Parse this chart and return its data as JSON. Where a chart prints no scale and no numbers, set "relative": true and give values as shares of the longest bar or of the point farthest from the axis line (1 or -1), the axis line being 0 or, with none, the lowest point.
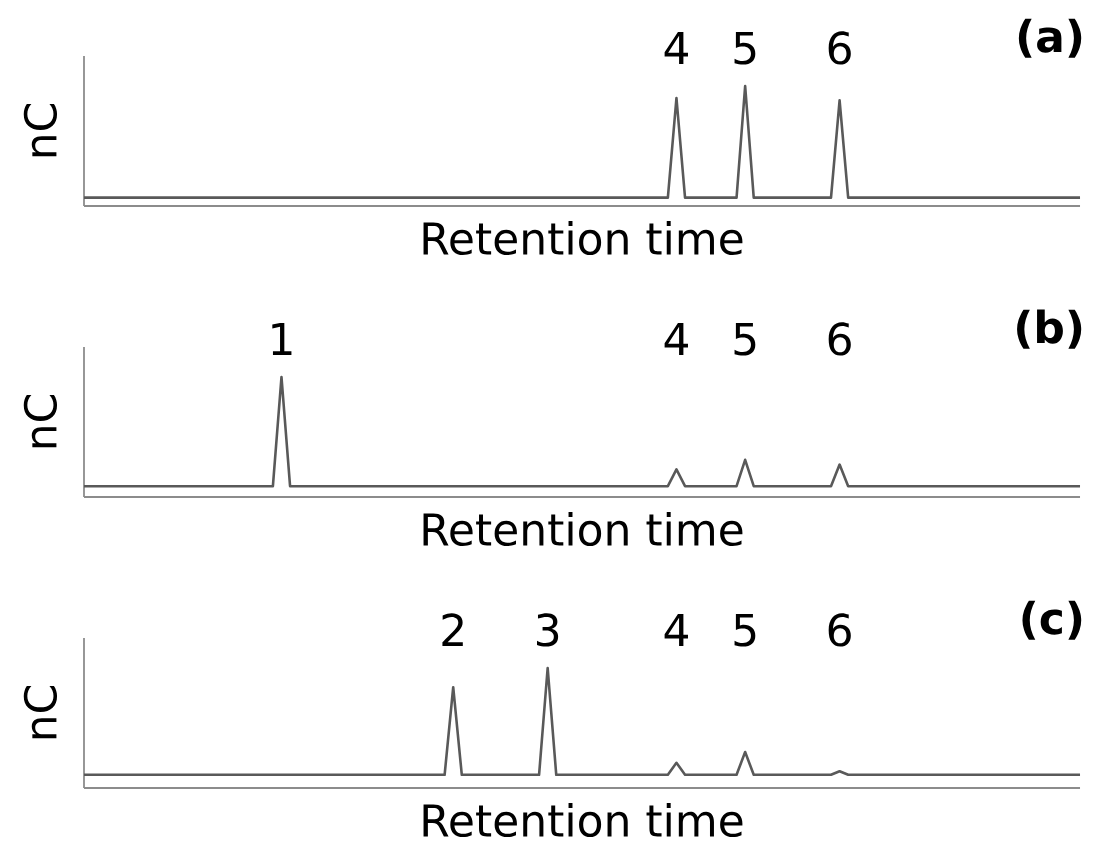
{
  "chart_data": [
    {
      "type": "line",
      "title": "(a)",
      "ylabel": "nC",
      "xlabel": "Retention time",
      "relative": true,
      "line_style": "solid",
      "annotations": [
        "4",
        "5",
        "6"
      ],
      "categories": [
        null,
        null,
        null,
        null,
        null,
        null,
        null,
        null,
        null,
        null,
        null,
        null,
        null,
        null,
        null,
        null,
        null,
        null,
        null,
        null,
        null,
        null,
        null,
        null,
        null,
        null,
        null,
        null,
        null,
        null,
        null,
        null,
        null,
        null,
        null,
        null,
        null,
        null,
        null,
        null,
        null,
        null,
        null,
        null,
        null,
        null,
        null,
        null,
        null,
        null,
        null,
        null,
        null,
        null,
        null,
        null,
        null,
        null,
        null,
        null,
        null,
        null,
        null,
        null,
        null,
        null,
        null,
        null,
        null,
        null,
        null,
        null,
        null,
        null,
        null,
        null,
        null,
        null,
        null,
        null,
        null,
        null,
        null,
        null,
        null,
        null,
        null,
        null,
        null,
        null,
        null,
        null,
        null,
        null,
        null,
        null,
        null,
        null,
        null,
        null,
        null,
        null,
        null,
        null,
        null,
        null,
        null,
        null,
        null,
        null,
        null,
        null,
        null,
        null,
        null,
        null,
        null
      ],
      "series": [
        {
          "color": "#595959",
          "values": [
            0.07,
            0.07,
            0.07,
            0.07,
            0.07,
            0.07,
            0.07,
            0.07,
            0.07,
            0.07,
            0.07,
            0.07,
            0.07,
            0.07,
            0.07,
            0.07,
            0.07,
            0.07,
            0.07,
            0.07,
            0.07,
            0.07,
            0.07,
            0.07,
            0.07,
            0.07,
            0.07,
            0.07,
            0.07,
            0.07,
            0.07,
            0.07,
            0.07,
            0.07,
            0.07,
            0.07,
            0.07,
            0.07,
            0.07,
            0.07,
            0.07,
            0.07,
            0.07,
            0.07,
            0.07,
            0.07,
            0.07,
            0.07,
            0.07,
            0.07,
            0.07,
            0.07,
            0.07,
            0.07,
            0.07,
            0.07,
            0.07,
            0.07,
            0.07,
            0.07,
            0.07,
            0.07,
            0.07,
            0.07,
            0.07,
            0.07,
            0.07,
            0.07,
            0.07,
            0.9,
            0.07,
            0.07,
            0.07,
            0.07,
            0.07,
            0.07,
            0.07,
            1,
            0.07,
            0.07,
            0.07,
            0.07,
            0.07,
            0.07,
            0.07,
            0.07,
            0.07,
            0.07,
            0.88,
            0.07,
            0.07,
            0.07,
            0.07,
            0.07,
            0.07,
            0.07,
            0.07,
            0.07,
            0.07,
            0.07,
            0.07,
            0.07,
            0.07,
            0.07,
            0.07,
            0.07,
            0.07,
            0.07,
            0.07,
            0.07,
            0.07,
            0.07,
            0.07,
            0.07,
            0.07,
            0.07,
            0.07
          ]
        }
      ]
    },
    {
      "type": "line",
      "title": "(b)",
      "ylabel": "nC",
      "xlabel": "Retention time",
      "relative": true,
      "line_style": "solid",
      "annotations": [
        "1",
        "4",
        "5",
        "6"
      ],
      "categories": [
        null,
        null,
        null,
        null,
        null,
        null,
        null,
        null,
        null,
        null,
        null,
        null,
        null,
        null,
        null,
        null,
        null,
        null,
        null,
        null,
        null,
        null,
        null,
        null,
        null,
        null,
        null,
        null,
        null,
        null,
        null,
        null,
        null,
        null,
        null,
        null,
        null,
        null,
        null,
        null,
        null,
        null,
        null,
        null,
        null,
        null,
        null,
        null,
        null,
        null,
        null,
        null,
        null,
        null,
        null,
        null,
        null,
        null,
        null,
        null,
        null,
        null,
        null,
        null,
        null,
        null,
        null,
        null,
        null,
        null,
        null,
        null,
        null,
        null,
        null,
        null,
        null,
        null,
        null,
        null,
        null,
        null,
        null,
        null,
        null,
        null,
        null,
        null,
        null,
        null,
        null,
        null,
        null,
        null,
        null,
        null,
        null,
        null,
        null,
        null,
        null,
        null,
        null,
        null,
        null,
        null,
        null,
        null,
        null,
        null,
        null,
        null,
        null,
        null,
        null,
        null,
        null
      ],
      "series": [
        {
          "color": "#595959",
          "values": [
            0.09,
            0.09,
            0.09,
            0.09,
            0.09,
            0.09,
            0.09,
            0.09,
            0.09,
            0.09,
            0.09,
            0.09,
            0.09,
            0.09,
            0.09,
            0.09,
            0.09,
            0.09,
            0.09,
            0.09,
            0.09,
            0.09,
            0.09,
            1,
            0.09,
            0.09,
            0.09,
            0.09,
            0.09,
            0.09,
            0.09,
            0.09,
            0.09,
            0.09,
            0.09,
            0.09,
            0.09,
            0.09,
            0.09,
            0.09,
            0.09,
            0.09,
            0.09,
            0.09,
            0.09,
            0.09,
            0.09,
            0.09,
            0.09,
            0.09,
            0.09,
            0.09,
            0.09,
            0.09,
            0.09,
            0.09,
            0.09,
            0.09,
            0.09,
            0.09,
            0.09,
            0.09,
            0.09,
            0.09,
            0.09,
            0.09,
            0.09,
            0.09,
            0.09,
            0.23,
            0.09,
            0.09,
            0.09,
            0.09,
            0.09,
            0.09,
            0.09,
            0.31,
            0.09,
            0.09,
            0.09,
            0.09,
            0.09,
            0.09,
            0.09,
            0.09,
            0.09,
            0.09,
            0.27,
            0.09,
            0.09,
            0.09,
            0.09,
            0.09,
            0.09,
            0.09,
            0.09,
            0.09,
            0.09,
            0.09,
            0.09,
            0.09,
            0.09,
            0.09,
            0.09,
            0.09,
            0.09,
            0.09,
            0.09,
            0.09,
            0.09,
            0.09,
            0.09,
            0.09,
            0.09,
            0.09,
            0.09
          ]
        }
      ]
    },
    {
      "type": "line",
      "title": "(c)",
      "ylabel": "nC",
      "xlabel": "Retention time",
      "relative": true,
      "line_style": "solid",
      "annotations": [
        "2",
        "3",
        "4",
        "5",
        "6"
      ],
      "categories": [
        null,
        null,
        null,
        null,
        null,
        null,
        null,
        null,
        null,
        null,
        null,
        null,
        null,
        null,
        null,
        null,
        null,
        null,
        null,
        null,
        null,
        null,
        null,
        null,
        null,
        null,
        null,
        null,
        null,
        null,
        null,
        null,
        null,
        null,
        null,
        null,
        null,
        null,
        null,
        null,
        null,
        null,
        null,
        null,
        null,
        null,
        null,
        null,
        null,
        null,
        null,
        null,
        null,
        null,
        null,
        null,
        null,
        null,
        null,
        null,
        null,
        null,
        null,
        null,
        null,
        null,
        null,
        null,
        null,
        null,
        null,
        null,
        null,
        null,
        null,
        null,
        null,
        null,
        null,
        null,
        null,
        null,
        null,
        null,
        null,
        null,
        null,
        null,
        null,
        null,
        null,
        null,
        null,
        null,
        null,
        null,
        null,
        null,
        null,
        null,
        null,
        null,
        null,
        null,
        null,
        null,
        null,
        null,
        null,
        null,
        null,
        null,
        null,
        null,
        null,
        null,
        null
      ],
      "series": [
        {
          "color": "#595959",
          "values": [
            0.11,
            0.11,
            0.11,
            0.11,
            0.11,
            0.11,
            0.11,
            0.11,
            0.11,
            0.11,
            0.11,
            0.11,
            0.11,
            0.11,
            0.11,
            0.11,
            0.11,
            0.11,
            0.11,
            0.11,
            0.11,
            0.11,
            0.11,
            0.11,
            0.11,
            0.11,
            0.11,
            0.11,
            0.11,
            0.11,
            0.11,
            0.11,
            0.11,
            0.11,
            0.11,
            0.11,
            0.11,
            0.11,
            0.11,
            0.11,
            0.11,
            0.11,
            0.11,
            0.84,
            0.11,
            0.11,
            0.11,
            0.11,
            0.11,
            0.11,
            0.11,
            0.11,
            0.11,
            0.11,
            1,
            0.11,
            0.11,
            0.11,
            0.11,
            0.11,
            0.11,
            0.11,
            0.11,
            0.11,
            0.11,
            0.11,
            0.11,
            0.11,
            0.11,
            0.21,
            0.11,
            0.11,
            0.11,
            0.11,
            0.11,
            0.11,
            0.11,
            0.3,
            0.11,
            0.11,
            0.11,
            0.11,
            0.11,
            0.11,
            0.11,
            0.11,
            0.11,
            0.11,
            0.14,
            0.11,
            0.11,
            0.11,
            0.11,
            0.11,
            0.11,
            0.11,
            0.11,
            0.11,
            0.11,
            0.11,
            0.11,
            0.11,
            0.11,
            0.11,
            0.11,
            0.11,
            0.11,
            0.11,
            0.11,
            0.11,
            0.11,
            0.11,
            0.11,
            0.11,
            0.11,
            0.11,
            0.11
          ]
        }
      ]
    }
  ]
}
